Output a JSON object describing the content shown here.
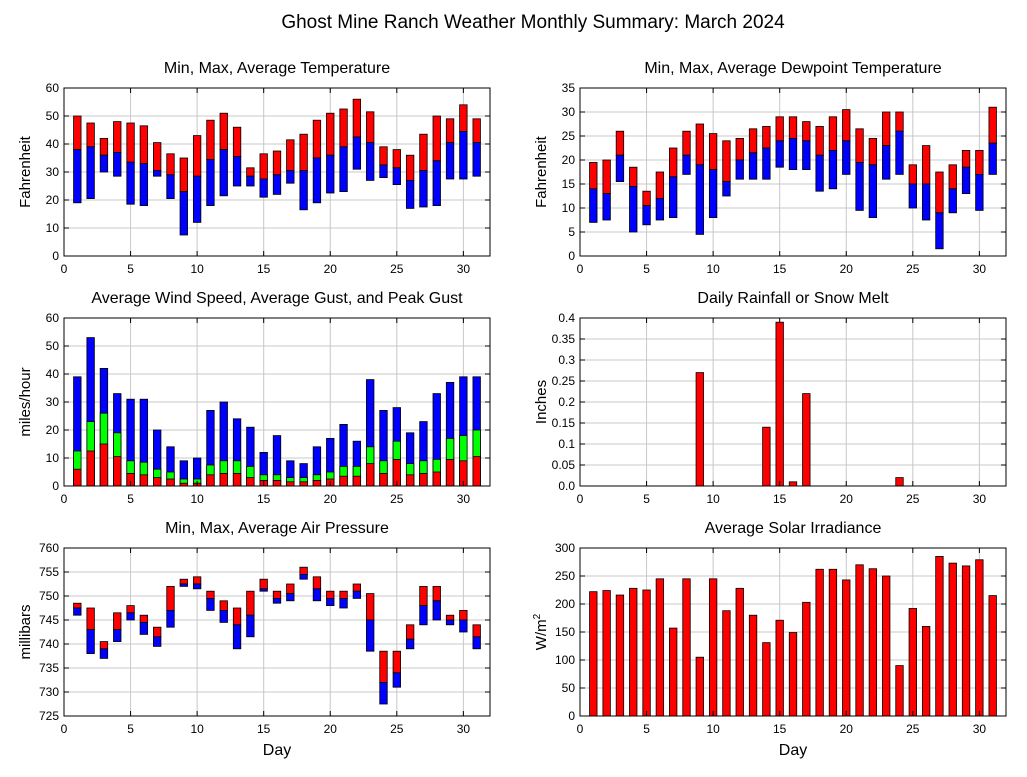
{
  "page": {
    "title": "Ghost Mine Ranch Weather Monthly Summary: March 2024"
  },
  "colors": {
    "max": "#ff0000",
    "avg_gust": "#00ff00",
    "min": "#0000ff",
    "bar_outline": "#000000",
    "grid": "#c8c8c8"
  },
  "chart_data": [
    {
      "id": "temperature",
      "type": "bar",
      "style": "range-stacked",
      "title": "Min, Max, Average Temperature",
      "xlabel": "",
      "ylabel": "Fahrenheit",
      "xlim": [
        0,
        32
      ],
      "ylim": [
        0,
        60
      ],
      "xticks": [
        0,
        5,
        10,
        15,
        20,
        25,
        30
      ],
      "yticks": [
        0,
        10,
        20,
        30,
        40,
        50,
        60
      ],
      "ytick_labels": [
        "0",
        "10",
        "20",
        "30",
        "40",
        "50",
        "60"
      ],
      "grid": true,
      "x": [
        1,
        2,
        3,
        4,
        5,
        6,
        7,
        8,
        9,
        10,
        11,
        12,
        13,
        14,
        15,
        16,
        17,
        18,
        19,
        20,
        21,
        22,
        23,
        24,
        25,
        26,
        27,
        28,
        29,
        30,
        31
      ],
      "max": [
        50,
        47.5,
        42,
        48,
        47.5,
        46.5,
        40.5,
        36.5,
        35,
        43,
        48.5,
        51,
        46,
        31.5,
        36.5,
        37.5,
        41.5,
        43.5,
        48.5,
        51,
        52.5,
        56,
        51.5,
        39,
        38,
        36,
        43.5,
        50,
        49,
        54,
        49
      ],
      "avg": [
        38,
        39,
        36,
        37,
        33.5,
        33,
        30.5,
        29,
        23,
        28.5,
        34.5,
        38,
        35.5,
        28.5,
        27.5,
        29,
        30.5,
        30.5,
        35,
        36,
        39,
        42.5,
        40.5,
        32.5,
        31.5,
        27,
        30.5,
        34,
        40.5,
        44.5,
        40.5
      ],
      "min": [
        19,
        20.5,
        30,
        28.5,
        18.5,
        18,
        28.5,
        20.5,
        7.5,
        12,
        18,
        21.5,
        25,
        25,
        21,
        22,
        26,
        16.5,
        19,
        22.5,
        23,
        31,
        27,
        28,
        25.5,
        17,
        17.5,
        18,
        27.5,
        27.5,
        28.5
      ]
    },
    {
      "id": "dewpoint",
      "type": "bar",
      "style": "range-stacked",
      "title": "Min, Max, Average Dewpoint Temperature",
      "xlabel": "",
      "ylabel": "Fahrenheit",
      "xlim": [
        0,
        32
      ],
      "ylim": [
        0,
        35
      ],
      "xticks": [
        0,
        5,
        10,
        15,
        20,
        25,
        30
      ],
      "yticks": [
        0,
        5,
        10,
        15,
        20,
        25,
        30,
        35
      ],
      "ytick_labels": [
        "0",
        "5",
        "10",
        "15",
        "20",
        "25",
        "30",
        "35"
      ],
      "grid": true,
      "x": [
        1,
        2,
        3,
        4,
        5,
        6,
        7,
        8,
        9,
        10,
        11,
        12,
        13,
        14,
        15,
        16,
        17,
        18,
        19,
        20,
        21,
        22,
        23,
        24,
        25,
        26,
        27,
        28,
        29,
        30,
        31
      ],
      "max": [
        19.5,
        20,
        26,
        18.5,
        13.5,
        17.5,
        22.5,
        26,
        27.5,
        25.5,
        24,
        24.5,
        26.5,
        27,
        29,
        29,
        28,
        27,
        29,
        30.5,
        26.5,
        24.5,
        30,
        30,
        19,
        23,
        17.5,
        19,
        22,
        22,
        31
      ],
      "avg": [
        14,
        13,
        21,
        14.5,
        10.5,
        12,
        16.5,
        21,
        19,
        18,
        15.5,
        20,
        21.5,
        22.5,
        24,
        24.5,
        24,
        21,
        22,
        24,
        19.5,
        19,
        23,
        26,
        15,
        15,
        9,
        14,
        18.5,
        17,
        23.5
      ],
      "min": [
        7,
        7.5,
        15.5,
        5,
        6.5,
        7.5,
        8,
        17,
        4.5,
        8,
        12.5,
        16,
        16,
        16,
        18.5,
        18,
        18,
        13.5,
        14,
        17,
        9.5,
        8,
        16,
        17,
        10,
        7.5,
        1.5,
        9,
        13,
        9.5,
        17
      ]
    },
    {
      "id": "wind",
      "type": "bar",
      "style": "overlay-stacked",
      "title": "Average Wind Speed, Average Gust, and Peak Gust",
      "xlabel": "",
      "ylabel": "miles/hour",
      "xlim": [
        0,
        32
      ],
      "ylim": [
        0,
        60
      ],
      "xticks": [
        0,
        5,
        10,
        15,
        20,
        25,
        30
      ],
      "yticks": [
        0,
        10,
        20,
        30,
        40,
        50,
        60
      ],
      "ytick_labels": [
        "0",
        "10",
        "20",
        "30",
        "40",
        "50",
        "60"
      ],
      "grid": true,
      "x": [
        1,
        2,
        3,
        4,
        5,
        6,
        7,
        8,
        9,
        10,
        11,
        12,
        13,
        14,
        15,
        16,
        17,
        18,
        19,
        20,
        21,
        22,
        23,
        24,
        25,
        26,
        27,
        28,
        29,
        30,
        31
      ],
      "peak_gust": [
        39,
        53,
        42,
        33,
        31,
        31,
        20,
        14,
        9,
        10,
        27,
        30,
        24,
        21,
        12,
        18,
        9,
        8,
        14,
        17,
        22,
        16,
        38,
        27,
        28,
        19,
        23,
        33,
        37,
        39,
        39
      ],
      "avg_gust": [
        12.5,
        23,
        26,
        19,
        9,
        8.5,
        6,
        5,
        2.5,
        2.5,
        7.5,
        9,
        9,
        7,
        4,
        4,
        3,
        3,
        4,
        5,
        7,
        7,
        14,
        9,
        16,
        8,
        9,
        9.5,
        17,
        18,
        20
      ],
      "avg_speed": [
        6,
        12.5,
        15,
        10.5,
        4.5,
        4,
        3,
        2.5,
        1,
        1,
        4,
        4.5,
        4.5,
        3,
        2,
        2,
        1.5,
        1.5,
        2,
        2.5,
        3.5,
        3.5,
        8,
        4.5,
        9.5,
        4,
        4.5,
        5,
        9.5,
        9,
        10.5
      ]
    },
    {
      "id": "rainfall",
      "type": "bar",
      "style": "simple",
      "title": "Daily Rainfall or Snow Melt",
      "xlabel": "",
      "ylabel": "Inches",
      "xlim": [
        0,
        32
      ],
      "ylim": [
        0,
        0.4
      ],
      "xticks": [
        0,
        5,
        10,
        15,
        20,
        25,
        30
      ],
      "yticks": [
        0,
        0.05,
        0.1,
        0.15,
        0.2,
        0.25,
        0.3,
        0.35,
        0.4
      ],
      "ytick_labels": [
        "0.0",
        "0.05",
        "0.1",
        "0.15",
        "0.2",
        "0.25",
        "0.3",
        "0.35",
        "0.4"
      ],
      "grid": true,
      "x": [
        1,
        2,
        3,
        4,
        5,
        6,
        7,
        8,
        9,
        10,
        11,
        12,
        13,
        14,
        15,
        16,
        17,
        18,
        19,
        20,
        21,
        22,
        23,
        24,
        25,
        26,
        27,
        28,
        29,
        30,
        31
      ],
      "values": [
        0,
        0,
        0,
        0,
        0,
        0,
        0,
        0,
        0.27,
        0,
        0,
        0,
        0,
        0.14,
        0.39,
        0.01,
        0.22,
        0,
        0,
        0,
        0,
        0,
        0,
        0.02,
        0,
        0,
        0,
        0,
        0,
        0,
        0
      ]
    },
    {
      "id": "pressure",
      "type": "bar",
      "style": "range-stacked",
      "title": "Min, Max, Average Air Pressure",
      "xlabel": "Day",
      "ylabel": "millibars",
      "xlim": [
        0,
        32
      ],
      "ylim": [
        725,
        760
      ],
      "xticks": [
        0,
        5,
        10,
        15,
        20,
        25,
        30
      ],
      "yticks": [
        725,
        730,
        735,
        740,
        745,
        750,
        755,
        760
      ],
      "ytick_labels": [
        "725",
        "730",
        "735",
        "740",
        "745",
        "750",
        "755",
        "760"
      ],
      "grid": true,
      "x": [
        1,
        2,
        3,
        4,
        5,
        6,
        7,
        8,
        9,
        10,
        11,
        12,
        13,
        14,
        15,
        16,
        17,
        18,
        19,
        20,
        21,
        22,
        23,
        24,
        25,
        26,
        27,
        28,
        29,
        30,
        31
      ],
      "max": [
        748.5,
        747.5,
        740.5,
        746.5,
        748,
        746,
        743.5,
        752,
        753.5,
        754,
        751,
        749,
        747.5,
        751,
        753.5,
        751,
        752.5,
        756,
        754,
        751,
        751,
        752.5,
        750.5,
        738.5,
        738.5,
        744,
        752,
        752,
        746,
        747,
        744
      ],
      "avg": [
        747.5,
        743,
        739,
        743,
        746.5,
        744.5,
        741.5,
        747,
        752.5,
        752.5,
        749.5,
        747,
        744,
        746,
        751.5,
        749.5,
        750.5,
        754.5,
        751.5,
        749.5,
        749.5,
        751,
        745,
        732,
        734,
        741,
        748,
        749,
        745,
        745,
        741.5
      ],
      "min": [
        746,
        738,
        737,
        740.5,
        745,
        742,
        739.5,
        743.5,
        752,
        751.5,
        747,
        744.5,
        739,
        741.5,
        751,
        748.5,
        749,
        753.5,
        749,
        748,
        747.5,
        749.5,
        738.5,
        727.5,
        731,
        739,
        744,
        745,
        744,
        742.5,
        739
      ]
    },
    {
      "id": "solar",
      "type": "bar",
      "style": "simple",
      "title": "Average Solar Irradiance",
      "xlabel": "Day",
      "ylabel": "W/m",
      "ylabel_superscript": "2",
      "xlim": [
        0,
        32
      ],
      "ylim": [
        0,
        300
      ],
      "xticks": [
        0,
        5,
        10,
        15,
        20,
        25,
        30
      ],
      "yticks": [
        0,
        50,
        100,
        150,
        200,
        250,
        300
      ],
      "ytick_labels": [
        "0",
        "50",
        "100",
        "150",
        "200",
        "250",
        "300"
      ],
      "grid": true,
      "x": [
        1,
        2,
        3,
        4,
        5,
        6,
        7,
        8,
        9,
        10,
        11,
        12,
        13,
        14,
        15,
        16,
        17,
        18,
        19,
        20,
        21,
        22,
        23,
        24,
        25,
        26,
        27,
        28,
        29,
        30,
        31
      ],
      "values": [
        222,
        224,
        216,
        228,
        225,
        245,
        157,
        245,
        105,
        245,
        188,
        228,
        180,
        131,
        171,
        149,
        203,
        262,
        262,
        243,
        270,
        263,
        250,
        90,
        192,
        160,
        285,
        273,
        268,
        279,
        215
      ]
    }
  ]
}
